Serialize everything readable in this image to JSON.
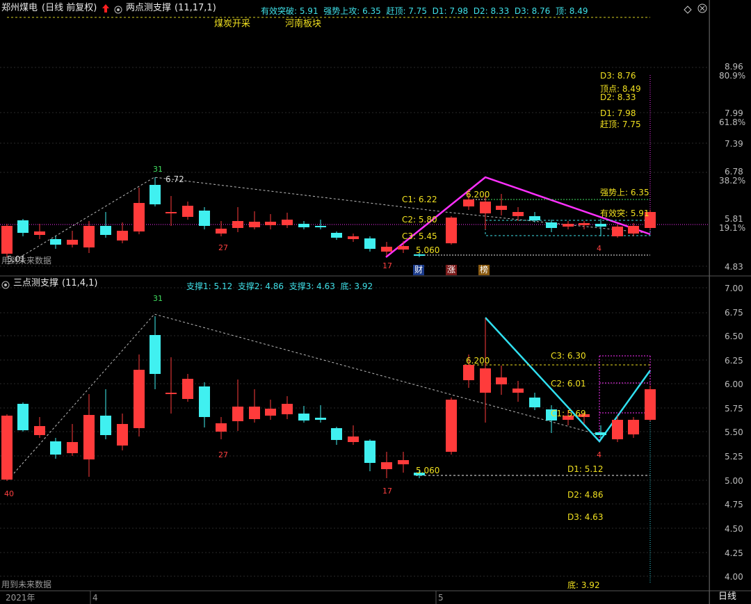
{
  "top": {
    "stock": "郑州煤电",
    "mode": "(日线 前复权)",
    "indicator": "两点测支撑",
    "params": "(11,17,1)",
    "summary": [
      {
        "label": "有效突破:",
        "value": "5.91"
      },
      {
        "label": "强势上攻:",
        "value": "6.35"
      },
      {
        "label": "赶顶:",
        "value": "7.75"
      },
      {
        "label": "D1:",
        "value": "7.98"
      },
      {
        "label": "D2:",
        "value": "8.33"
      },
      {
        "label": "D3:",
        "value": "8.76"
      },
      {
        "label": "顶:",
        "value": "8.49"
      }
    ],
    "concepts": [
      "煤炭开采",
      "河南板块"
    ],
    "future_note": "用到未来数据",
    "low_label": "5.01",
    "high_label": "6.72",
    "mark_31": "31",
    "mark_27": "27",
    "mark_17": "17",
    "mark_4": "4",
    "c_labels": [
      "C1: 6.22",
      "C2: 5.80",
      "C3: 5.45"
    ],
    "price_6200": "6.200",
    "price_5060": "5.060",
    "right_labels": [
      "D3: 8.76",
      "顶点: 8.49",
      "D2: 8.33",
      "D1: 7.98",
      "赶顶: 7.75",
      "强势上: 6.35",
      "有效突: 5.91"
    ],
    "badges": [
      "财",
      "涨",
      "榜"
    ],
    "yaxis": [
      "8.96",
      "80.9%",
      "7.99",
      "61.8%",
      "7.39",
      "6.78",
      "38.2%",
      "5.81",
      "19.1%",
      "4.83"
    ]
  },
  "bottom": {
    "indicator": "三点测支撑",
    "params": "(11,4,1)",
    "summary": [
      {
        "label": "支撑1:",
        "value": "5.12"
      },
      {
        "label": "支撑2:",
        "value": "4.86"
      },
      {
        "label": "支撑3:",
        "value": "4.63"
      },
      {
        "label": "底:",
        "value": "3.92"
      }
    ],
    "future_note": "用到未来数据",
    "mark_31": "31",
    "mark_27": "27",
    "mark_17": "17",
    "mark_40": "40",
    "mark_4": "4",
    "price_6200": "6.200",
    "price_5060": "5.060",
    "c_labels": [
      "C3: 6.30",
      "C2: 6.01",
      "C1: 5.69"
    ],
    "d_labels": [
      "D1: 5.12",
      "D2: 4.86",
      "D3: 4.63",
      "底: 3.92"
    ],
    "yaxis": [
      "7.00",
      "6.75",
      "6.50",
      "6.25",
      "6.00",
      "5.75",
      "5.50",
      "5.25",
      "5.00",
      "4.75",
      "4.50",
      "4.25",
      "4.00"
    ]
  },
  "xaxis": {
    "year": "2021年",
    "m4": "4",
    "m5": "5",
    "period": "日线"
  },
  "colors": {
    "up": "#ff3b3b",
    "down": "#40f0f0",
    "magenta": "#ff30ff",
    "cyanline": "#30e0f0",
    "yellow": "#f0e020"
  }
}
